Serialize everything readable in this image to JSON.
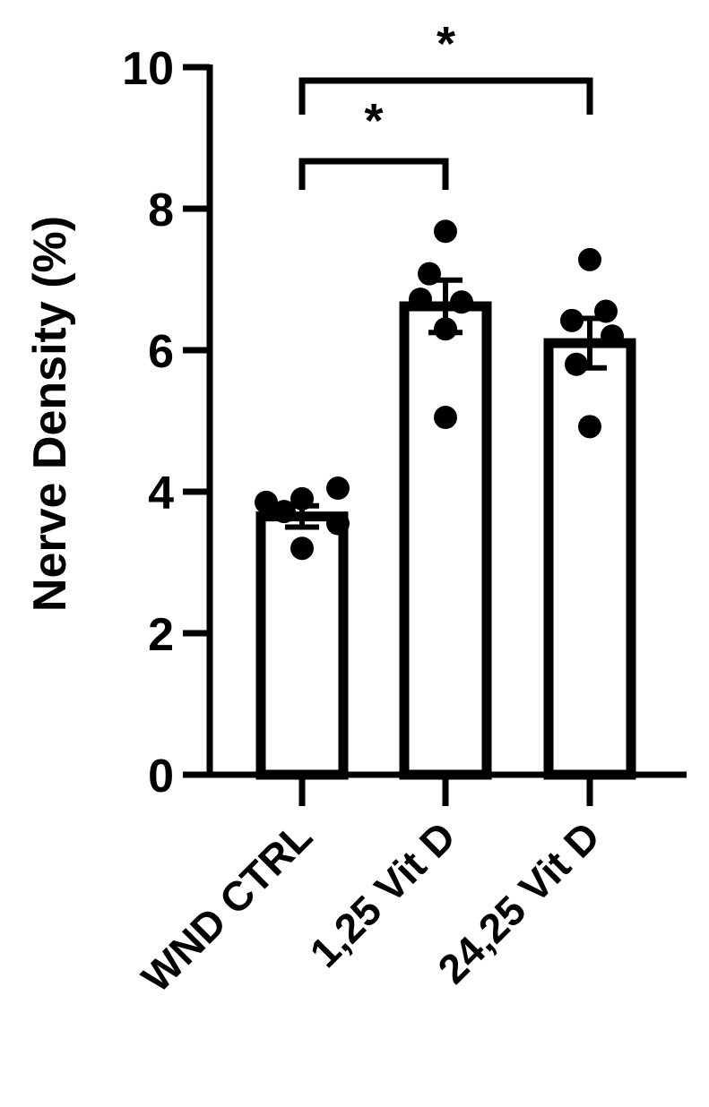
{
  "chart_data": {
    "type": "bar",
    "ylabel": "Nerve Density (%)",
    "xlabel": "",
    "ylim": [
      0,
      10
    ],
    "yticks": [
      "0",
      "2",
      "4",
      "6",
      "8",
      "10"
    ],
    "categories": [
      "WND CTRL",
      "1,25 Vit D",
      "24,25 Vit D"
    ],
    "values": [
      3.65,
      6.62,
      6.1
    ],
    "error_sem": [
      0.15,
      0.37,
      0.35
    ],
    "points": [
      [
        3.85,
        3.9,
        4.05,
        3.55,
        3.72,
        3.2
      ],
      [
        7.68,
        7.08,
        6.68,
        6.72,
        6.3,
        5.05
      ],
      [
        7.28,
        6.55,
        6.42,
        6.2,
        5.8,
        4.92
      ]
    ],
    "significance": [
      {
        "from": 0,
        "to": 1,
        "label": "*"
      },
      {
        "from": 0,
        "to": 2,
        "label": "*"
      }
    ],
    "grid": false,
    "colors": {
      "bar_fill": "#ffffff",
      "stroke": "#000000",
      "points": "#000000"
    }
  }
}
